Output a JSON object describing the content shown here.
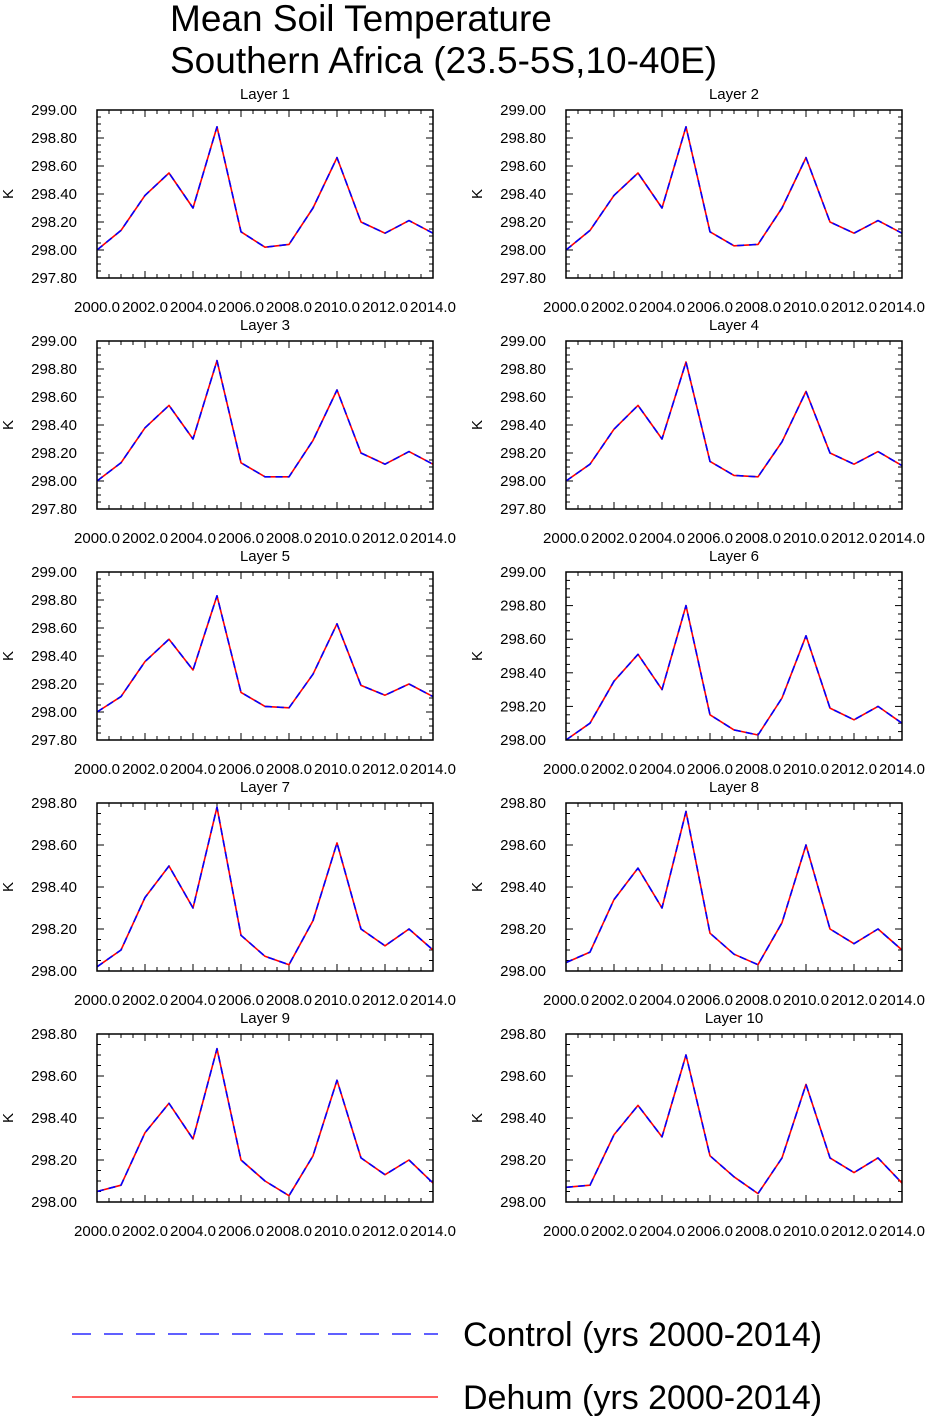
{
  "figure": {
    "title_line1": "Mean Soil Temperature",
    "title_line2": "Southern Africa (23.5-5S,10-40E)",
    "x_tick_labels": [
      "2000.0",
      "2002.0",
      "2004.0",
      "2006.0",
      "2008.0",
      "2010.0",
      "2012.0",
      "2014.0"
    ],
    "legend": [
      {
        "label": "Control (yrs 2000-2014)",
        "color": "#0000ff",
        "style": "dashed"
      },
      {
        "label": "Dehum (yrs 2000-2014)",
        "color": "#ff0000",
        "style": "solid"
      }
    ]
  },
  "chart_data": [
    {
      "type": "line",
      "title": "Layer 1",
      "ylabel": "K",
      "x": [
        2000,
        2001,
        2002,
        2003,
        2004,
        2005,
        2006,
        2007,
        2008,
        2009,
        2010,
        2011,
        2012,
        2013,
        2014
      ],
      "xlim": [
        2000,
        2014
      ],
      "ylim": [
        297.8,
        299.0
      ],
      "yticks": [
        "297.80",
        "298.00",
        "298.20",
        "298.40",
        "298.60",
        "298.80",
        "299.00"
      ],
      "series": [
        {
          "name": "Control (yrs 2000-2014)",
          "values": [
            298.0,
            298.14,
            298.39,
            298.55,
            298.3,
            298.88,
            298.13,
            298.02,
            298.04,
            298.3,
            298.66,
            298.2,
            298.12,
            298.21,
            298.12
          ]
        },
        {
          "name": "Dehum (yrs 2000-2014)",
          "values": [
            298.0,
            298.14,
            298.39,
            298.55,
            298.3,
            298.88,
            298.13,
            298.02,
            298.04,
            298.3,
            298.66,
            298.2,
            298.12,
            298.21,
            298.12
          ]
        }
      ]
    },
    {
      "type": "line",
      "title": "Layer 2",
      "ylabel": "K",
      "x": [
        2000,
        2001,
        2002,
        2003,
        2004,
        2005,
        2006,
        2007,
        2008,
        2009,
        2010,
        2011,
        2012,
        2013,
        2014
      ],
      "xlim": [
        2000,
        2014
      ],
      "ylim": [
        297.8,
        299.0
      ],
      "yticks": [
        "297.80",
        "298.00",
        "298.20",
        "298.40",
        "298.60",
        "298.80",
        "299.00"
      ],
      "series": [
        {
          "name": "Control (yrs 2000-2014)",
          "values": [
            298.0,
            298.14,
            298.39,
            298.55,
            298.3,
            298.88,
            298.13,
            298.03,
            298.04,
            298.3,
            298.66,
            298.2,
            298.12,
            298.21,
            298.12
          ]
        },
        {
          "name": "Dehum (yrs 2000-2014)",
          "values": [
            298.0,
            298.14,
            298.39,
            298.55,
            298.3,
            298.88,
            298.13,
            298.03,
            298.04,
            298.3,
            298.66,
            298.2,
            298.12,
            298.21,
            298.12
          ]
        }
      ]
    },
    {
      "type": "line",
      "title": "Layer 3",
      "ylabel": "K",
      "x": [
        2000,
        2001,
        2002,
        2003,
        2004,
        2005,
        2006,
        2007,
        2008,
        2009,
        2010,
        2011,
        2012,
        2013,
        2014
      ],
      "xlim": [
        2000,
        2014
      ],
      "ylim": [
        297.8,
        299.0
      ],
      "yticks": [
        "297.80",
        "298.00",
        "298.20",
        "298.40",
        "298.60",
        "298.80",
        "299.00"
      ],
      "series": [
        {
          "name": "Control (yrs 2000-2014)",
          "values": [
            298.0,
            298.13,
            298.38,
            298.54,
            298.3,
            298.86,
            298.13,
            298.03,
            298.03,
            298.29,
            298.65,
            298.2,
            298.12,
            298.21,
            298.12
          ]
        },
        {
          "name": "Dehum (yrs 2000-2014)",
          "values": [
            298.0,
            298.13,
            298.38,
            298.54,
            298.3,
            298.86,
            298.13,
            298.03,
            298.03,
            298.29,
            298.65,
            298.2,
            298.12,
            298.21,
            298.12
          ]
        }
      ]
    },
    {
      "type": "line",
      "title": "Layer 4",
      "ylabel": "K",
      "x": [
        2000,
        2001,
        2002,
        2003,
        2004,
        2005,
        2006,
        2007,
        2008,
        2009,
        2010,
        2011,
        2012,
        2013,
        2014
      ],
      "xlim": [
        2000,
        2014
      ],
      "ylim": [
        297.8,
        299.0
      ],
      "yticks": [
        "297.80",
        "298.00",
        "298.20",
        "298.40",
        "298.60",
        "298.80",
        "299.00"
      ],
      "series": [
        {
          "name": "Control (yrs 2000-2014)",
          "values": [
            298.0,
            298.12,
            298.37,
            298.54,
            298.3,
            298.85,
            298.14,
            298.04,
            298.03,
            298.28,
            298.64,
            298.2,
            298.12,
            298.21,
            298.11
          ]
        },
        {
          "name": "Dehum (yrs 2000-2014)",
          "values": [
            298.0,
            298.12,
            298.37,
            298.54,
            298.3,
            298.85,
            298.14,
            298.04,
            298.03,
            298.28,
            298.64,
            298.2,
            298.12,
            298.21,
            298.11
          ]
        }
      ]
    },
    {
      "type": "line",
      "title": "Layer 5",
      "ylabel": "K",
      "x": [
        2000,
        2001,
        2002,
        2003,
        2004,
        2005,
        2006,
        2007,
        2008,
        2009,
        2010,
        2011,
        2012,
        2013,
        2014
      ],
      "xlim": [
        2000,
        2014
      ],
      "ylim": [
        297.8,
        299.0
      ],
      "yticks": [
        "297.80",
        "298.00",
        "298.20",
        "298.40",
        "298.60",
        "298.80",
        "299.00"
      ],
      "series": [
        {
          "name": "Control (yrs 2000-2014)",
          "values": [
            298.0,
            298.11,
            298.36,
            298.52,
            298.3,
            298.83,
            298.14,
            298.04,
            298.03,
            298.27,
            298.63,
            298.19,
            298.12,
            298.2,
            298.11
          ]
        },
        {
          "name": "Dehum (yrs 2000-2014)",
          "values": [
            298.0,
            298.11,
            298.36,
            298.52,
            298.3,
            298.83,
            298.14,
            298.04,
            298.03,
            298.27,
            298.63,
            298.19,
            298.12,
            298.2,
            298.11
          ]
        }
      ]
    },
    {
      "type": "line",
      "title": "Layer 6",
      "ylabel": "K",
      "x": [
        2000,
        2001,
        2002,
        2003,
        2004,
        2005,
        2006,
        2007,
        2008,
        2009,
        2010,
        2011,
        2012,
        2013,
        2014
      ],
      "xlim": [
        2000,
        2014
      ],
      "ylim": [
        298.0,
        299.0
      ],
      "yticks": [
        "298.00",
        "298.20",
        "298.40",
        "298.60",
        "298.80",
        "299.00"
      ],
      "series": [
        {
          "name": "Control (yrs 2000-2014)",
          "values": [
            298.0,
            298.1,
            298.35,
            298.51,
            298.3,
            298.8,
            298.15,
            298.06,
            298.03,
            298.25,
            298.62,
            298.19,
            298.12,
            298.2,
            298.1
          ]
        },
        {
          "name": "Dehum (yrs 2000-2014)",
          "values": [
            298.0,
            298.1,
            298.35,
            298.51,
            298.3,
            298.8,
            298.15,
            298.06,
            298.03,
            298.25,
            298.62,
            298.19,
            298.12,
            298.2,
            298.1
          ]
        }
      ]
    },
    {
      "type": "line",
      "title": "Layer 7",
      "ylabel": "K",
      "x": [
        2000,
        2001,
        2002,
        2003,
        2004,
        2005,
        2006,
        2007,
        2008,
        2009,
        2010,
        2011,
        2012,
        2013,
        2014
      ],
      "xlim": [
        2000,
        2014
      ],
      "ylim": [
        298.0,
        298.8
      ],
      "yticks": [
        "298.00",
        "298.20",
        "298.40",
        "298.60",
        "298.80"
      ],
      "series": [
        {
          "name": "Control (yrs 2000-2014)",
          "values": [
            298.02,
            298.1,
            298.35,
            298.5,
            298.3,
            298.78,
            298.17,
            298.07,
            298.03,
            298.24,
            298.61,
            298.2,
            298.12,
            298.2,
            298.1
          ]
        },
        {
          "name": "Dehum (yrs 2000-2014)",
          "values": [
            298.02,
            298.1,
            298.35,
            298.5,
            298.3,
            298.78,
            298.17,
            298.07,
            298.03,
            298.24,
            298.61,
            298.2,
            298.12,
            298.2,
            298.1
          ]
        }
      ]
    },
    {
      "type": "line",
      "title": "Layer 8",
      "ylabel": "K",
      "x": [
        2000,
        2001,
        2002,
        2003,
        2004,
        2005,
        2006,
        2007,
        2008,
        2009,
        2010,
        2011,
        2012,
        2013,
        2014
      ],
      "xlim": [
        2000,
        2014
      ],
      "ylim": [
        298.0,
        298.8
      ],
      "yticks": [
        "298.00",
        "298.20",
        "298.40",
        "298.60",
        "298.80"
      ],
      "series": [
        {
          "name": "Control (yrs 2000-2014)",
          "values": [
            298.04,
            298.09,
            298.34,
            298.49,
            298.3,
            298.76,
            298.18,
            298.08,
            298.03,
            298.23,
            298.6,
            298.2,
            298.13,
            298.2,
            298.1
          ]
        },
        {
          "name": "Dehum (yrs 2000-2014)",
          "values": [
            298.04,
            298.09,
            298.34,
            298.49,
            298.3,
            298.76,
            298.18,
            298.08,
            298.03,
            298.23,
            298.6,
            298.2,
            298.13,
            298.2,
            298.1
          ]
        }
      ]
    },
    {
      "type": "line",
      "title": "Layer 9",
      "ylabel": "K",
      "x": [
        2000,
        2001,
        2002,
        2003,
        2004,
        2005,
        2006,
        2007,
        2008,
        2009,
        2010,
        2011,
        2012,
        2013,
        2014
      ],
      "xlim": [
        2000,
        2014
      ],
      "ylim": [
        298.0,
        298.8
      ],
      "yticks": [
        "298.00",
        "298.20",
        "298.40",
        "298.60",
        "298.80"
      ],
      "series": [
        {
          "name": "Control (yrs 2000-2014)",
          "values": [
            298.05,
            298.08,
            298.33,
            298.47,
            298.3,
            298.73,
            298.2,
            298.1,
            298.03,
            298.22,
            298.58,
            298.21,
            298.13,
            298.2,
            298.09
          ]
        },
        {
          "name": "Dehum (yrs 2000-2014)",
          "values": [
            298.05,
            298.08,
            298.33,
            298.47,
            298.3,
            298.73,
            298.2,
            298.1,
            298.03,
            298.22,
            298.58,
            298.21,
            298.13,
            298.2,
            298.09
          ]
        }
      ]
    },
    {
      "type": "line",
      "title": "Layer 10",
      "ylabel": "K",
      "x": [
        2000,
        2001,
        2002,
        2003,
        2004,
        2005,
        2006,
        2007,
        2008,
        2009,
        2010,
        2011,
        2012,
        2013,
        2014
      ],
      "xlim": [
        2000,
        2014
      ],
      "ylim": [
        298.0,
        298.8
      ],
      "yticks": [
        "298.00",
        "298.20",
        "298.40",
        "298.60",
        "298.80"
      ],
      "series": [
        {
          "name": "Control (yrs 2000-2014)",
          "values": [
            298.07,
            298.08,
            298.32,
            298.46,
            298.31,
            298.7,
            298.22,
            298.12,
            298.04,
            298.21,
            298.56,
            298.21,
            298.14,
            298.21,
            298.09
          ]
        },
        {
          "name": "Dehum (yrs 2000-2014)",
          "values": [
            298.07,
            298.08,
            298.32,
            298.46,
            298.31,
            298.7,
            298.22,
            298.12,
            298.04,
            298.21,
            298.56,
            298.21,
            298.14,
            298.21,
            298.09
          ]
        }
      ]
    }
  ]
}
